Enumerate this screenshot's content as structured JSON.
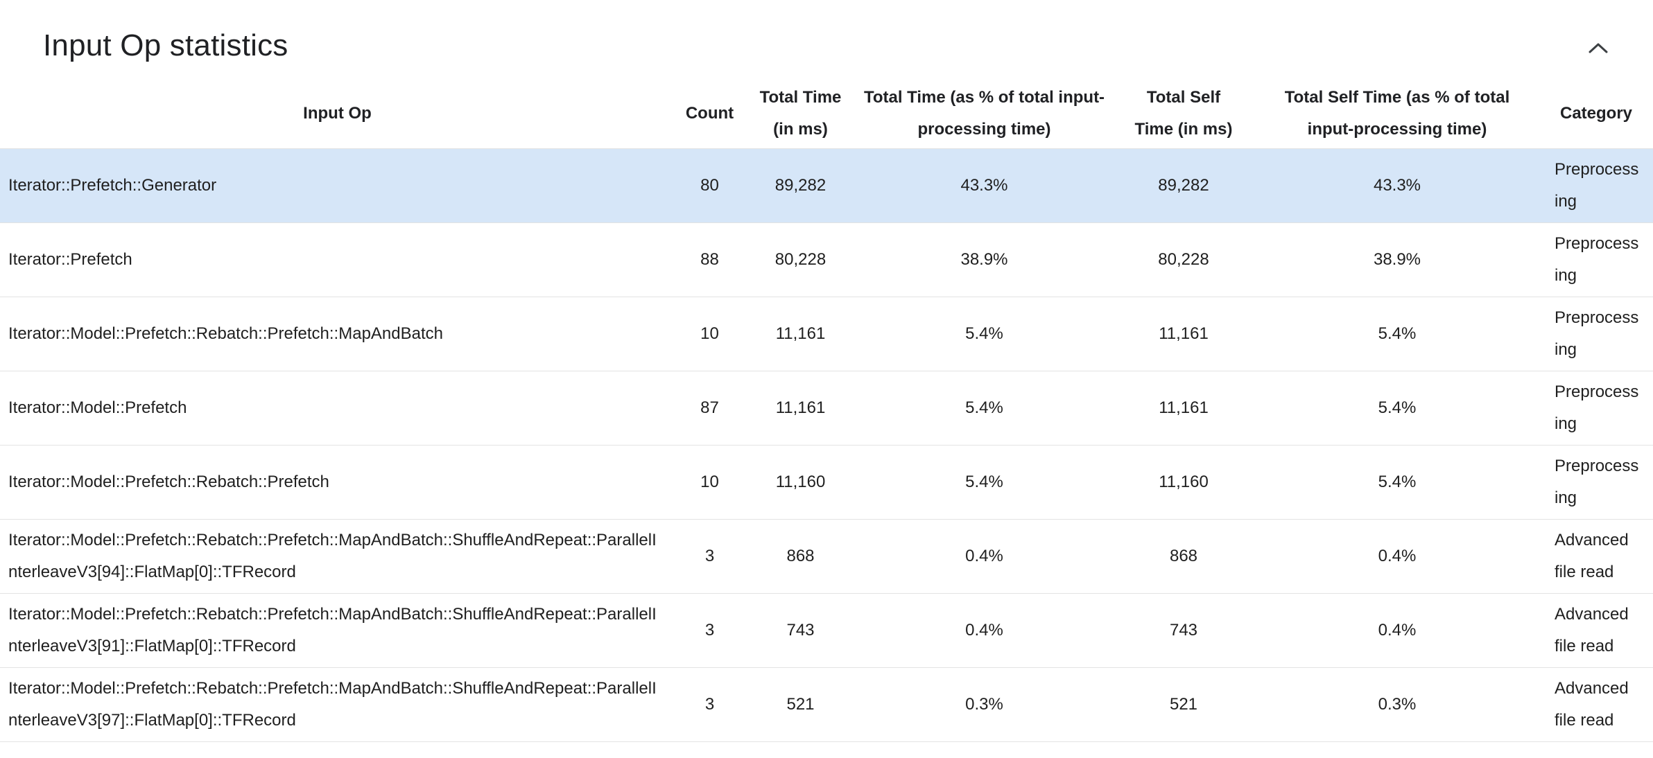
{
  "panel": {
    "title": "Input Op statistics",
    "collapse_icon": "chevron-up"
  },
  "colors": {
    "selected_row": "#d6e6f8",
    "row_border": "#e3e3e3",
    "header_text": "#202124",
    "icon": "#3c4043"
  },
  "table": {
    "headers": [
      "Input Op",
      "Count",
      "Total Time (in ms)",
      "Total Time (as % of total input-processing time)",
      "Total Self Time (in ms)",
      "Total Self Time (as % of total input-processing time)",
      "Category"
    ],
    "rows": [
      {
        "op": "Iterator::Prefetch::Generator",
        "count": "80",
        "total_time_ms": "89,282",
        "total_time_pct": "43.3%",
        "self_time_ms": "89,282",
        "self_time_pct": "43.3%",
        "category": "Preprocessing",
        "selected": true
      },
      {
        "op": "Iterator::Prefetch",
        "count": "88",
        "total_time_ms": "80,228",
        "total_time_pct": "38.9%",
        "self_time_ms": "80,228",
        "self_time_pct": "38.9%",
        "category": "Preprocessing",
        "selected": false
      },
      {
        "op": "Iterator::Model::Prefetch::Rebatch::Prefetch::MapAndBatch",
        "count": "10",
        "total_time_ms": "11,161",
        "total_time_pct": "5.4%",
        "self_time_ms": "11,161",
        "self_time_pct": "5.4%",
        "category": "Preprocessing",
        "selected": false
      },
      {
        "op": "Iterator::Model::Prefetch",
        "count": "87",
        "total_time_ms": "11,161",
        "total_time_pct": "5.4%",
        "self_time_ms": "11,161",
        "self_time_pct": "5.4%",
        "category": "Preprocessing",
        "selected": false
      },
      {
        "op": "Iterator::Model::Prefetch::Rebatch::Prefetch",
        "count": "10",
        "total_time_ms": "11,160",
        "total_time_pct": "5.4%",
        "self_time_ms": "11,160",
        "self_time_pct": "5.4%",
        "category": "Preprocessing",
        "selected": false
      },
      {
        "op": "Iterator::Model::Prefetch::Rebatch::Prefetch::MapAndBatch::ShuffleAndRepeat::ParallelInterleaveV3[94]::FlatMap[0]::TFRecord",
        "count": "3",
        "total_time_ms": "868",
        "total_time_pct": "0.4%",
        "self_time_ms": "868",
        "self_time_pct": "0.4%",
        "category": "Advanced file read",
        "selected": false
      },
      {
        "op": "Iterator::Model::Prefetch::Rebatch::Prefetch::MapAndBatch::ShuffleAndRepeat::ParallelInterleaveV3[91]::FlatMap[0]::TFRecord",
        "count": "3",
        "total_time_ms": "743",
        "total_time_pct": "0.4%",
        "self_time_ms": "743",
        "self_time_pct": "0.4%",
        "category": "Advanced file read",
        "selected": false
      },
      {
        "op": "Iterator::Model::Prefetch::Rebatch::Prefetch::MapAndBatch::ShuffleAndRepeat::ParallelInterleaveV3[97]::FlatMap[0]::TFRecord",
        "count": "3",
        "total_time_ms": "521",
        "total_time_pct": "0.3%",
        "self_time_ms": "521",
        "self_time_pct": "0.3%",
        "category": "Advanced file read",
        "selected": false
      }
    ]
  }
}
